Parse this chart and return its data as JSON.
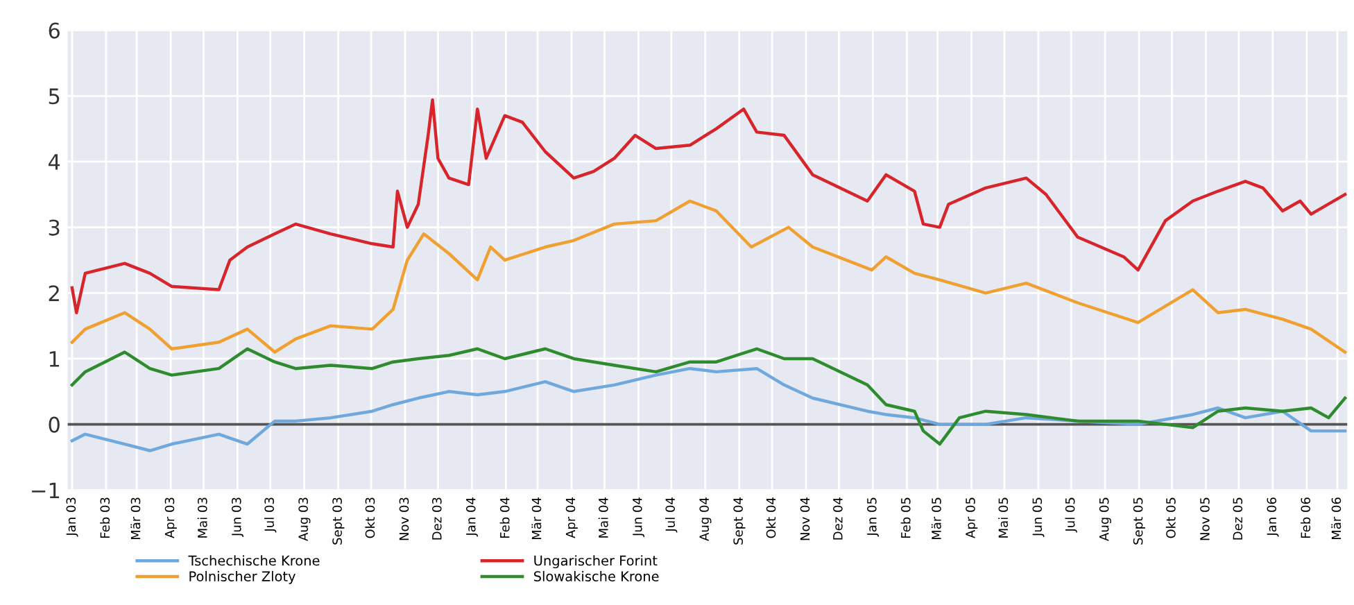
{
  "chart_data": {
    "type": "line",
    "x": [
      "2003-01-01",
      "2003-01-05",
      "2003-01-13",
      "2003-02-18",
      "2003-03-13",
      "2003-04-02",
      "2003-05-15",
      "2003-05-25",
      "2003-06-10",
      "2003-07-05",
      "2003-07-24",
      "2003-08-25",
      "2003-10-02",
      "2003-10-21",
      "2003-10-25",
      "2003-11-03",
      "2003-11-13",
      "2003-11-22",
      "2003-11-26",
      "2003-12-01",
      "2003-12-11",
      "2003-12-29",
      "2004-01-06",
      "2004-01-14",
      "2004-01-31",
      "2004-02-16",
      "2004-03-08",
      "2004-04-03",
      "2004-04-21",
      "2004-05-10",
      "2004-05-29",
      "2004-06-17",
      "2004-07-18",
      "2004-08-11",
      "2004-09-05",
      "2004-09-17",
      "2004-10-12",
      "2004-11-07",
      "2004-12-27",
      "2005-01-13",
      "2005-02-08",
      "2005-02-16",
      "2005-03-03",
      "2005-03-11",
      "2005-04-14",
      "2005-05-21",
      "2005-06-08",
      "2005-07-07",
      "2005-08-18",
      "2005-08-31",
      "2005-09-25",
      "2005-10-20",
      "2005-11-12",
      "2005-12-07",
      "2005-12-23",
      "2006-01-10",
      "2006-01-26",
      "2006-02-05",
      "2006-03-08"
    ],
    "series": [
      {
        "name": "Tschechische Krone",
        "color": "#6fa8dc",
        "x": [
          "2003-01-01",
          "2003-01-13",
          "2003-02-18",
          "2003-03-13",
          "2003-04-02",
          "2003-05-15",
          "2003-06-10",
          "2003-07-05",
          "2003-07-24",
          "2003-08-25",
          "2003-10-02",
          "2003-10-21",
          "2003-11-13",
          "2003-12-11",
          "2004-01-06",
          "2004-01-31",
          "2004-03-08",
          "2004-04-03",
          "2004-05-10",
          "2004-06-17",
          "2004-07-18",
          "2004-08-11",
          "2004-09-17",
          "2004-10-12",
          "2004-11-07",
          "2004-12-27",
          "2005-01-13",
          "2005-02-08",
          "2005-03-03",
          "2005-04-14",
          "2005-05-21",
          "2005-07-07",
          "2005-08-31",
          "2005-10-20",
          "2005-11-12",
          "2005-12-07",
          "2006-01-10",
          "2006-02-05",
          "2006-03-08"
        ],
        "values": [
          -0.25,
          -0.15,
          -0.3,
          -0.4,
          -0.3,
          -0.15,
          -0.3,
          0.05,
          0.05,
          0.1,
          0.2,
          0.3,
          0.4,
          0.5,
          0.45,
          0.5,
          0.65,
          0.5,
          0.6,
          0.75,
          0.85,
          0.8,
          0.85,
          0.6,
          0.4,
          0.2,
          0.15,
          0.1,
          0.0,
          0.0,
          0.1,
          0.05,
          0.0,
          0.15,
          0.25,
          0.1,
          0.2,
          -0.1,
          -0.1
        ]
      },
      {
        "name": "Polnischer Zloty",
        "color": "#f0a030",
        "x": [
          "2003-01-01",
          "2003-01-13",
          "2003-02-18",
          "2003-03-13",
          "2003-04-02",
          "2003-05-15",
          "2003-06-10",
          "2003-07-05",
          "2003-07-24",
          "2003-08-25",
          "2003-10-02",
          "2003-10-21",
          "2003-11-03",
          "2003-11-18",
          "2003-12-11",
          "2004-01-06",
          "2004-01-18",
          "2004-01-31",
          "2004-03-08",
          "2004-04-03",
          "2004-05-10",
          "2004-06-17",
          "2004-07-18",
          "2004-08-11",
          "2004-09-12",
          "2004-10-16",
          "2004-11-07",
          "2004-12-31",
          "2005-01-13",
          "2005-02-08",
          "2005-03-03",
          "2005-04-14",
          "2005-05-21",
          "2005-07-07",
          "2005-08-31",
          "2005-10-20",
          "2005-11-12",
          "2005-12-07",
          "2006-01-10",
          "2006-02-05",
          "2006-03-08"
        ],
        "values": [
          1.25,
          1.45,
          1.7,
          1.45,
          1.15,
          1.25,
          1.45,
          1.1,
          1.3,
          1.5,
          1.45,
          1.75,
          2.5,
          2.9,
          2.6,
          2.2,
          2.7,
          2.5,
          2.7,
          2.8,
          3.05,
          3.1,
          3.4,
          3.25,
          2.7,
          3.0,
          2.7,
          2.35,
          2.55,
          2.3,
          2.2,
          2.0,
          2.15,
          1.85,
          1.55,
          2.05,
          1.7,
          1.75,
          1.6,
          1.45,
          1.1
        ]
      },
      {
        "name": "Ungarischer Forint",
        "color": "#d7252b",
        "values": [
          2.08,
          1.7,
          2.3,
          2.45,
          2.3,
          2.1,
          2.05,
          2.5,
          2.7,
          2.9,
          3.05,
          2.9,
          2.75,
          2.7,
          3.55,
          3.0,
          3.35,
          4.4,
          4.94,
          4.05,
          3.75,
          3.65,
          4.8,
          4.05,
          4.7,
          4.6,
          4.15,
          3.75,
          3.85,
          4.05,
          4.4,
          4.2,
          4.25,
          4.5,
          4.8,
          4.45,
          4.4,
          3.8,
          3.4,
          3.8,
          3.55,
          3.05,
          3.0,
          3.35,
          3.6,
          3.75,
          3.5,
          2.85,
          2.55,
          2.35,
          3.1,
          3.4,
          3.55,
          3.7,
          3.6,
          3.25,
          3.4,
          3.2,
          3.5
        ]
      },
      {
        "name": "Slowakische Krone",
        "color": "#2e8b2e",
        "x": [
          "2003-01-01",
          "2003-01-13",
          "2003-02-18",
          "2003-03-13",
          "2003-04-02",
          "2003-05-15",
          "2003-06-10",
          "2003-07-05",
          "2003-07-24",
          "2003-08-25",
          "2003-10-02",
          "2003-10-21",
          "2003-11-13",
          "2003-12-11",
          "2004-01-06",
          "2004-01-31",
          "2004-03-08",
          "2004-04-03",
          "2004-05-10",
          "2004-06-17",
          "2004-07-18",
          "2004-08-11",
          "2004-09-17",
          "2004-10-12",
          "2004-11-07",
          "2004-12-27",
          "2005-01-13",
          "2005-02-08",
          "2005-02-16",
          "2005-03-03",
          "2005-03-21",
          "2005-04-14",
          "2005-05-21",
          "2005-07-07",
          "2005-08-31",
          "2005-10-20",
          "2005-11-12",
          "2005-12-07",
          "2006-01-10",
          "2006-02-05",
          "2006-02-21",
          "2006-03-08"
        ],
        "values": [
          0.6,
          0.8,
          1.1,
          0.85,
          0.75,
          0.85,
          1.15,
          0.95,
          0.85,
          0.9,
          0.85,
          0.95,
          1.0,
          1.05,
          1.15,
          1.0,
          1.15,
          1.0,
          0.9,
          0.8,
          0.95,
          0.95,
          1.15,
          1.0,
          1.0,
          0.6,
          0.3,
          0.2,
          -0.1,
          -0.3,
          0.1,
          0.2,
          0.15,
          0.05,
          0.05,
          -0.05,
          0.2,
          0.25,
          0.2,
          0.25,
          0.1,
          0.4
        ]
      }
    ],
    "xlim": [
      "2002-12-28",
      "2006-03-10"
    ],
    "xticks": [
      {
        "value": "2003-01-01",
        "label": "Jan 03"
      },
      {
        "value": "2003-02-01",
        "label": "Feb 03"
      },
      {
        "value": "2003-03-01",
        "label": "Mär 03"
      },
      {
        "value": "2003-04-01",
        "label": "Apr 03"
      },
      {
        "value": "2003-05-01",
        "label": "Mai 03"
      },
      {
        "value": "2003-06-01",
        "label": "Jun 03"
      },
      {
        "value": "2003-07-01",
        "label": "Jul 03"
      },
      {
        "value": "2003-08-01",
        "label": "Aug 03"
      },
      {
        "value": "2003-09-01",
        "label": "Sept 03"
      },
      {
        "value": "2003-10-01",
        "label": "Okt 03"
      },
      {
        "value": "2003-11-01",
        "label": "Nov 03"
      },
      {
        "value": "2003-12-01",
        "label": "Dez 03"
      },
      {
        "value": "2004-01-01",
        "label": "Jan 04"
      },
      {
        "value": "2004-02-01",
        "label": "Feb 04"
      },
      {
        "value": "2004-03-01",
        "label": "Mär 04"
      },
      {
        "value": "2004-04-01",
        "label": "Apr 04"
      },
      {
        "value": "2004-05-01",
        "label": "Mai 04"
      },
      {
        "value": "2004-06-01",
        "label": "Jun 04"
      },
      {
        "value": "2004-07-01",
        "label": "Jul 04"
      },
      {
        "value": "2004-08-01",
        "label": "Aug 04"
      },
      {
        "value": "2004-09-01",
        "label": "Sept 04"
      },
      {
        "value": "2004-10-01",
        "label": "Okt 04"
      },
      {
        "value": "2004-11-01",
        "label": "Nov 04"
      },
      {
        "value": "2004-12-01",
        "label": "Dez 04"
      },
      {
        "value": "2005-01-01",
        "label": "Jan 05"
      },
      {
        "value": "2005-02-01",
        "label": "Feb 05"
      },
      {
        "value": "2005-03-01",
        "label": "Mär 05"
      },
      {
        "value": "2005-04-01",
        "label": "Apr 05"
      },
      {
        "value": "2005-05-01",
        "label": "Mai 05"
      },
      {
        "value": "2005-06-01",
        "label": "Jun 05"
      },
      {
        "value": "2005-07-01",
        "label": "Jul 05"
      },
      {
        "value": "2005-08-01",
        "label": "Aug 05"
      },
      {
        "value": "2005-09-01",
        "label": "Sept 05"
      },
      {
        "value": "2005-10-01",
        "label": "Okt 05"
      },
      {
        "value": "2005-11-01",
        "label": "Nov 05"
      },
      {
        "value": "2005-12-01",
        "label": "Dez 05"
      },
      {
        "value": "2006-01-01",
        "label": "Jan 06"
      },
      {
        "value": "2006-02-01",
        "label": "Feb 06"
      },
      {
        "value": "2006-03-01",
        "label": "Mär 06"
      }
    ],
    "ylim": [
      -1,
      6
    ],
    "yticks": [
      {
        "value": -1,
        "label": "−1"
      },
      0,
      1,
      2,
      3,
      4,
      5,
      6
    ],
    "ref_lines": [
      {
        "axis": "y",
        "value": 0,
        "color": "#555555"
      }
    ],
    "grid": true,
    "legend": "bottom"
  }
}
